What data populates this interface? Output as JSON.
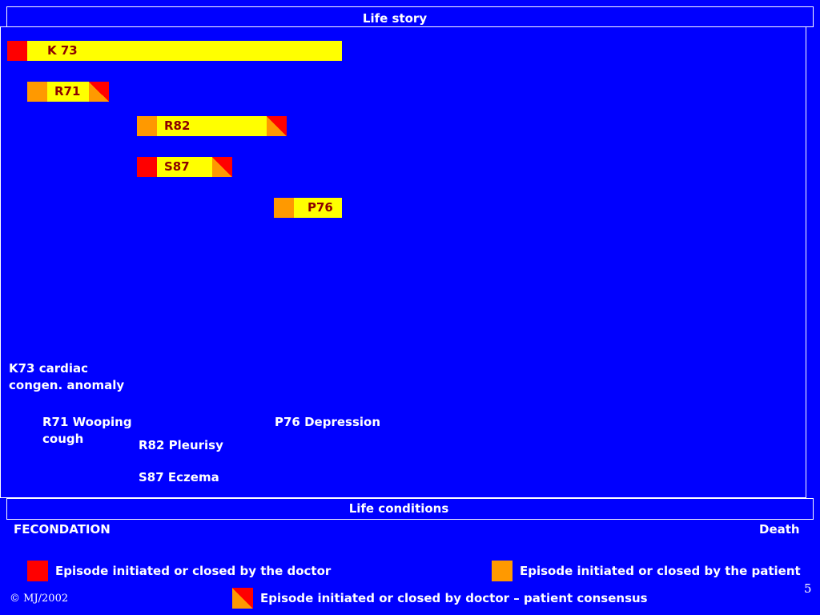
{
  "slide": {
    "top_header": "Life story",
    "bottom_header": "Life conditions",
    "start_label": "FECONDATION",
    "end_label": "Death",
    "copyright": "© MJ/2002",
    "page_number": "5"
  },
  "episodes": [
    {
      "code": "K 73",
      "start_type": "doctor",
      "end_type": "open"
    },
    {
      "code": "R71",
      "start_type": "patient",
      "end_type": "consensus"
    },
    {
      "code": "R82",
      "start_type": "patient",
      "end_type": "consensus"
    },
    {
      "code": "S87",
      "start_type": "doctor",
      "end_type": "consensus"
    },
    {
      "code": "P76",
      "start_type": "patient",
      "end_type": "open"
    }
  ],
  "descriptions": [
    "K73 cardiac\ncongen. anomaly",
    "R71 Wooping\ncough",
    "R82 Pleurisy",
    "S87 Eczema",
    "P76 Depression"
  ],
  "legend": {
    "doctor": "Episode initiated or closed by the doctor",
    "patient": "Episode initiated or closed by the patient",
    "consensus": "Episode initiated or closed  by doctor – patient consensus"
  },
  "colors": {
    "background": "#0000ff",
    "doctor": "#ff0000",
    "patient": "#ff9900",
    "episode_body": "#ffff00",
    "code_text": "#8b0000"
  }
}
